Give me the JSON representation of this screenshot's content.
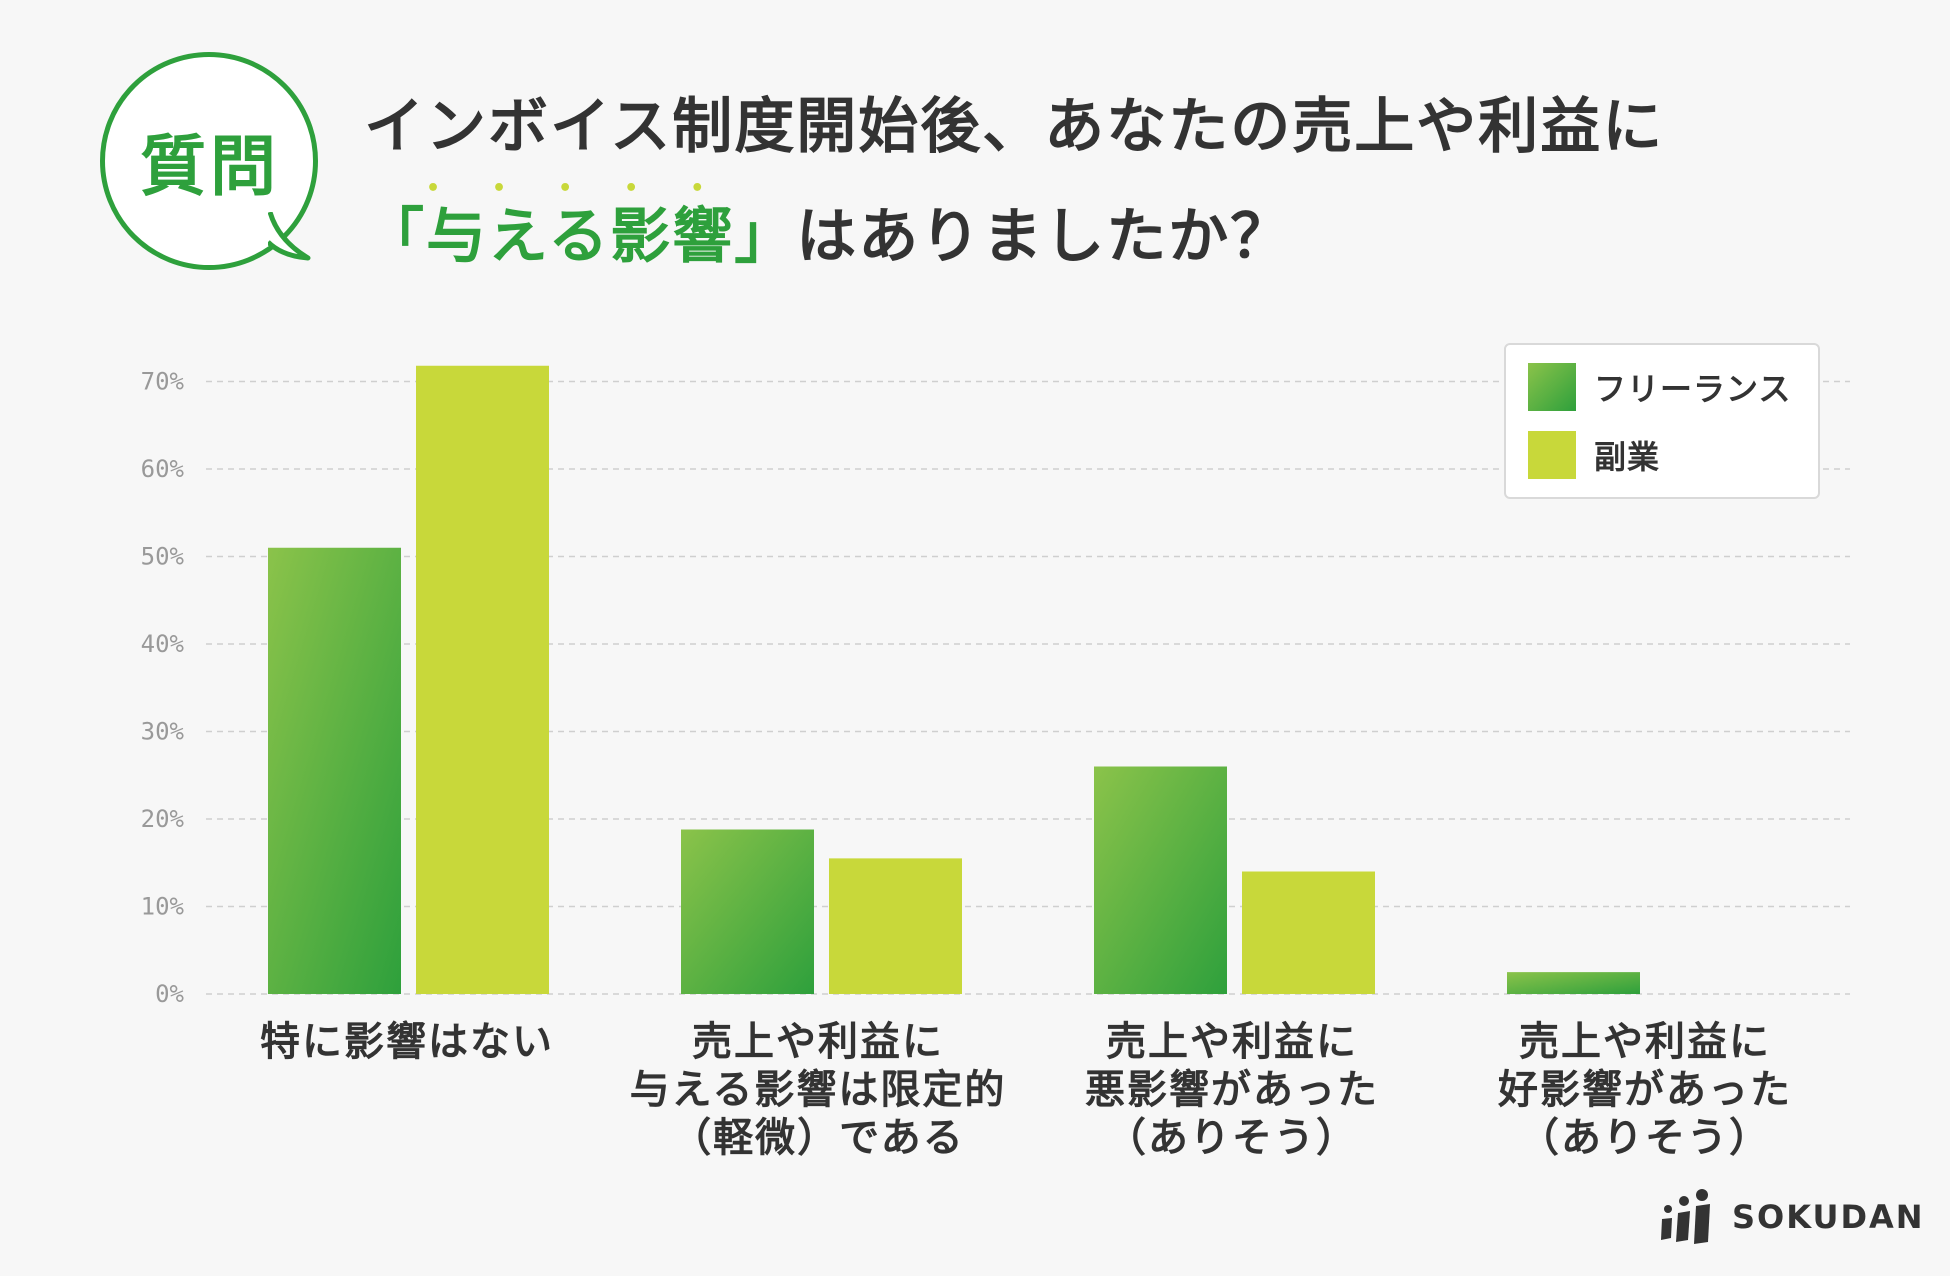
{
  "question": {
    "badge": "質問",
    "title_line1": "インボイス制度開始後、あなたの売上や利益に",
    "title_line2_open": "「",
    "title_line2_accent": "与える影響",
    "title_line2_close": "」",
    "title_line2_rest": "はありましたか？"
  },
  "colors": {
    "freelance_start": "#8bc34a",
    "freelance_end": "#2ea03c",
    "side_job": "#c8d83a",
    "accent": "#2ea03c",
    "grid": "#cfcfcf",
    "tick": "#999999"
  },
  "chart_data": {
    "type": "bar",
    "title": "インボイス制度開始後、あなたの売上や利益に「与える影響」はありましたか？",
    "categories": [
      "特に影響はない",
      "売上や利益に\n与える影響は限定的\n（軽微）である",
      "売上や利益に\n悪影響があった\n（ありそう）",
      "売上や利益に\n好影響があった\n（ありそう）"
    ],
    "series": [
      {
        "name": "フリーランス",
        "values": [
          51,
          18.8,
          26,
          2.5
        ]
      },
      {
        "name": "副業",
        "values": [
          71.8,
          15.5,
          14,
          0
        ]
      }
    ],
    "yticks": [
      "0%",
      "10%",
      "20%",
      "30%",
      "40%",
      "50%",
      "60%",
      "70%"
    ],
    "ylim": [
      0,
      70
    ],
    "xlabel": "",
    "ylabel": "",
    "grid": true,
    "legend_position": "top-right"
  },
  "logo": {
    "text": "SOKUDAN"
  }
}
